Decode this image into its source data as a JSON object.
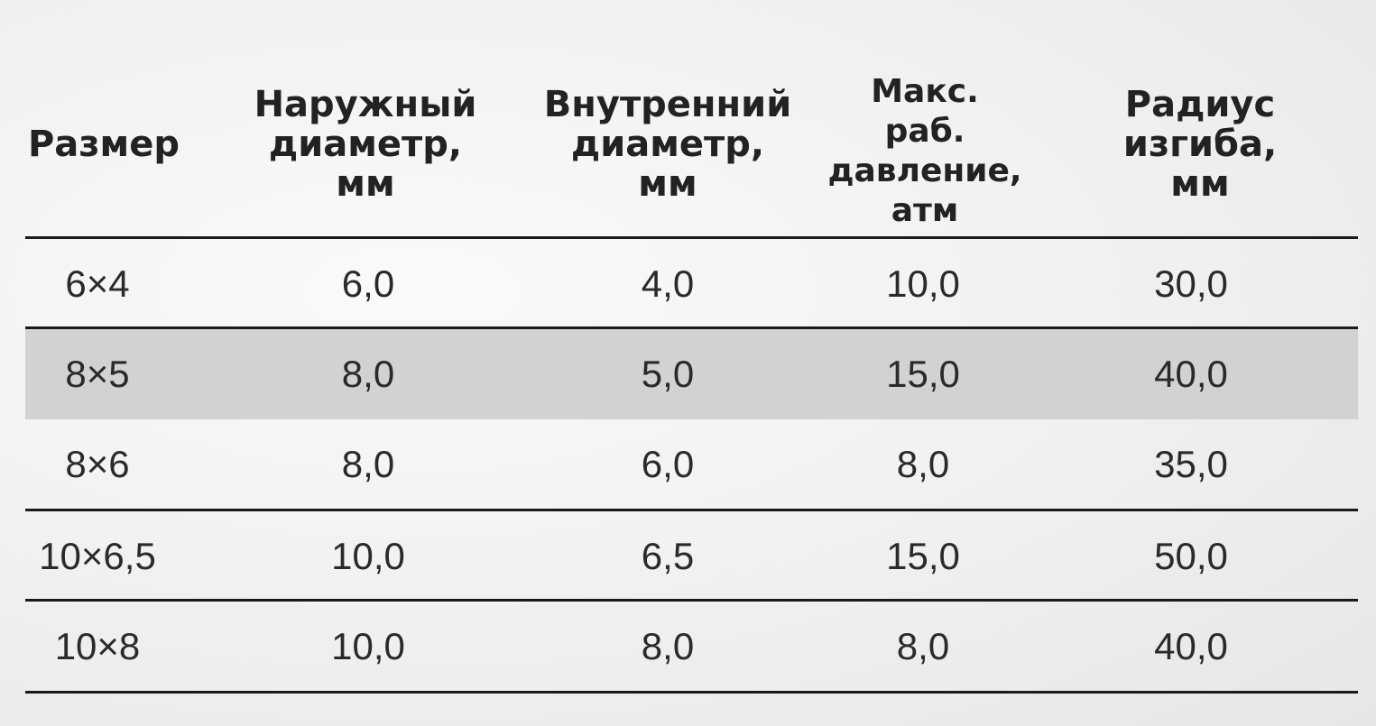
{
  "table": {
    "headers": [
      "Размер",
      "Наружный диаметр, мм",
      "Внутренний диаметр, мм",
      "Макс. раб. давление, атм",
      "Радиус изгиба, мм"
    ],
    "header_lines": [
      [
        "Размер"
      ],
      [
        "Наружный",
        "диаметр,",
        "мм"
      ],
      [
        "Внутренний",
        "диаметр,",
        "мм"
      ],
      [
        "Макс.",
        "раб.",
        "давление,",
        "атм"
      ],
      [
        "Радиус",
        "изгиба,",
        "мм"
      ]
    ],
    "rows": [
      [
        "6×4",
        "6,0",
        "4,0",
        "10,0",
        "30,0"
      ],
      [
        "8×5",
        "8,0",
        "5,0",
        "15,0",
        "40,0"
      ],
      [
        "8×6",
        "8,0",
        "6,0",
        "8,0",
        "35,0"
      ],
      [
        "10×6,5",
        "10,0",
        "6,5",
        "15,0",
        "50,0"
      ],
      [
        "10×8",
        "10,0",
        "8,0",
        "8,0",
        "40,0"
      ]
    ],
    "highlight_row_color": "#d2d2d2"
  }
}
